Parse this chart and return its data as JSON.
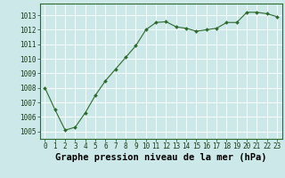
{
  "x": [
    0,
    1,
    2,
    3,
    4,
    5,
    6,
    7,
    8,
    9,
    10,
    11,
    12,
    13,
    14,
    15,
    16,
    17,
    18,
    19,
    20,
    21,
    22,
    23
  ],
  "y": [
    1008.0,
    1006.5,
    1005.1,
    1005.3,
    1006.3,
    1007.5,
    1008.5,
    1009.3,
    1010.1,
    1010.9,
    1012.0,
    1012.5,
    1012.55,
    1012.2,
    1012.1,
    1011.9,
    1012.0,
    1012.1,
    1012.5,
    1012.5,
    1013.2,
    1013.2,
    1013.1,
    1012.9
  ],
  "xlabel": "Graphe pression niveau de la mer (hPa)",
  "line_color": "#2d6a2d",
  "marker_color": "#2d6a2d",
  "bg_color": "#cce8e8",
  "grid_color": "#ffffff",
  "ylim": [
    1004.5,
    1013.8
  ],
  "ytick_labels": [
    "1005",
    "1006",
    "1007",
    "1008",
    "1009",
    "1010",
    "1011",
    "1012",
    "1013"
  ],
  "ytick_vals": [
    1005,
    1006,
    1007,
    1008,
    1009,
    1010,
    1011,
    1012,
    1013
  ],
  "xtick_vals": [
    0,
    1,
    2,
    3,
    4,
    5,
    6,
    7,
    8,
    9,
    10,
    11,
    12,
    13,
    14,
    15,
    16,
    17,
    18,
    19,
    20,
    21,
    22,
    23
  ],
  "tick_fontsize": 5.5,
  "xlabel_fontsize": 7.5,
  "spine_color": "#2d6a2d"
}
